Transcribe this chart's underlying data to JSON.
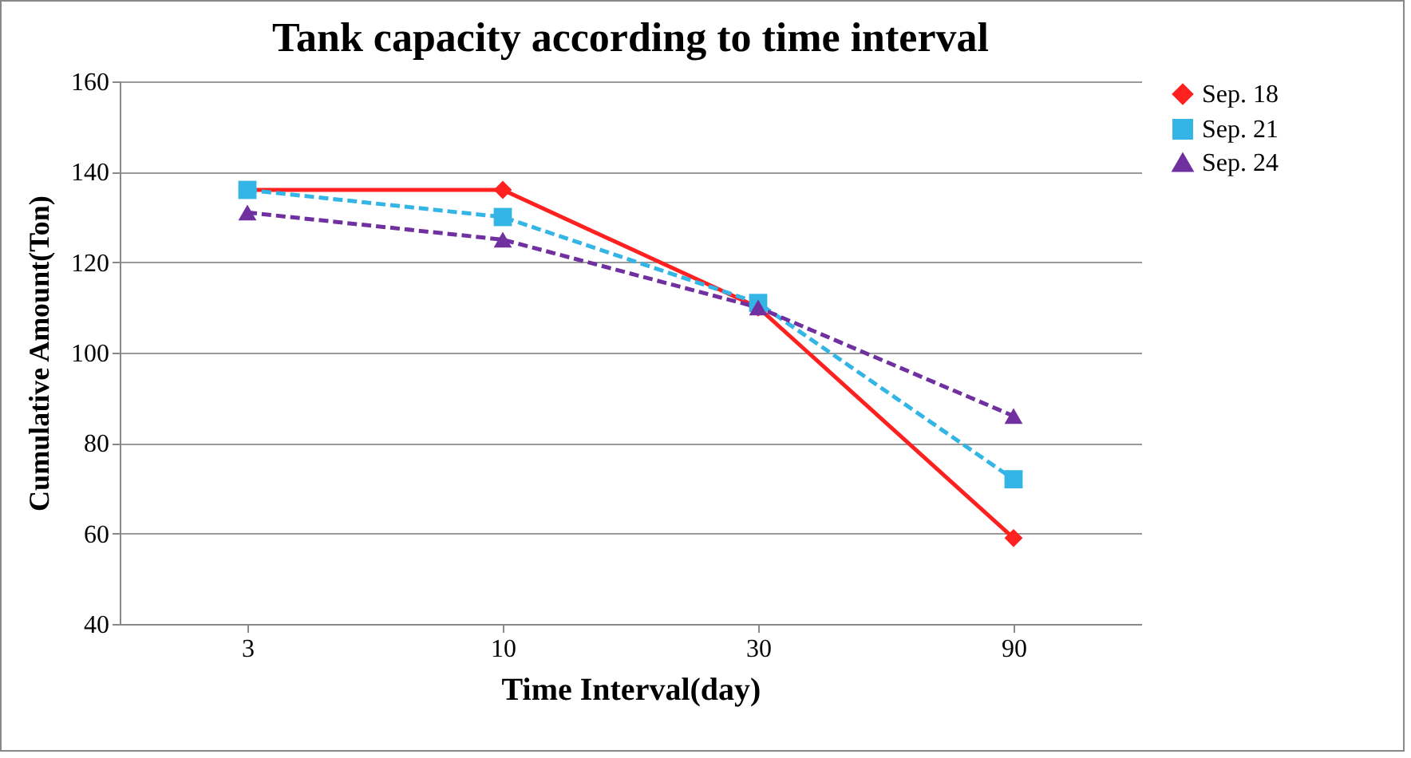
{
  "chart_data": {
    "type": "line",
    "title": "Tank capacity according to time interval",
    "xlabel": "Time Interval(day)",
    "ylabel": "Cumulative  Amount(Ton)",
    "categories": [
      "3",
      "10",
      "30",
      "90"
    ],
    "series": [
      {
        "name": "Sep. 18",
        "color": "#ff2020",
        "marker": "diamond",
        "line_style": "solid",
        "values": [
          136,
          136,
          110,
          59
        ]
      },
      {
        "name": "Sep. 21",
        "color": "#33b5e5",
        "marker": "square",
        "line_style": "dashed",
        "values": [
          136,
          130,
          111,
          72
        ]
      },
      {
        "name": "Sep. 24",
        "color": "#7030a0",
        "marker": "triangle",
        "line_style": "dashed",
        "values": [
          131,
          125,
          110,
          86
        ]
      }
    ],
    "ylim": [
      40,
      160
    ],
    "yticks": [
      40,
      60,
      80,
      100,
      120,
      140,
      160
    ],
    "grid": "y",
    "legend": "right"
  }
}
